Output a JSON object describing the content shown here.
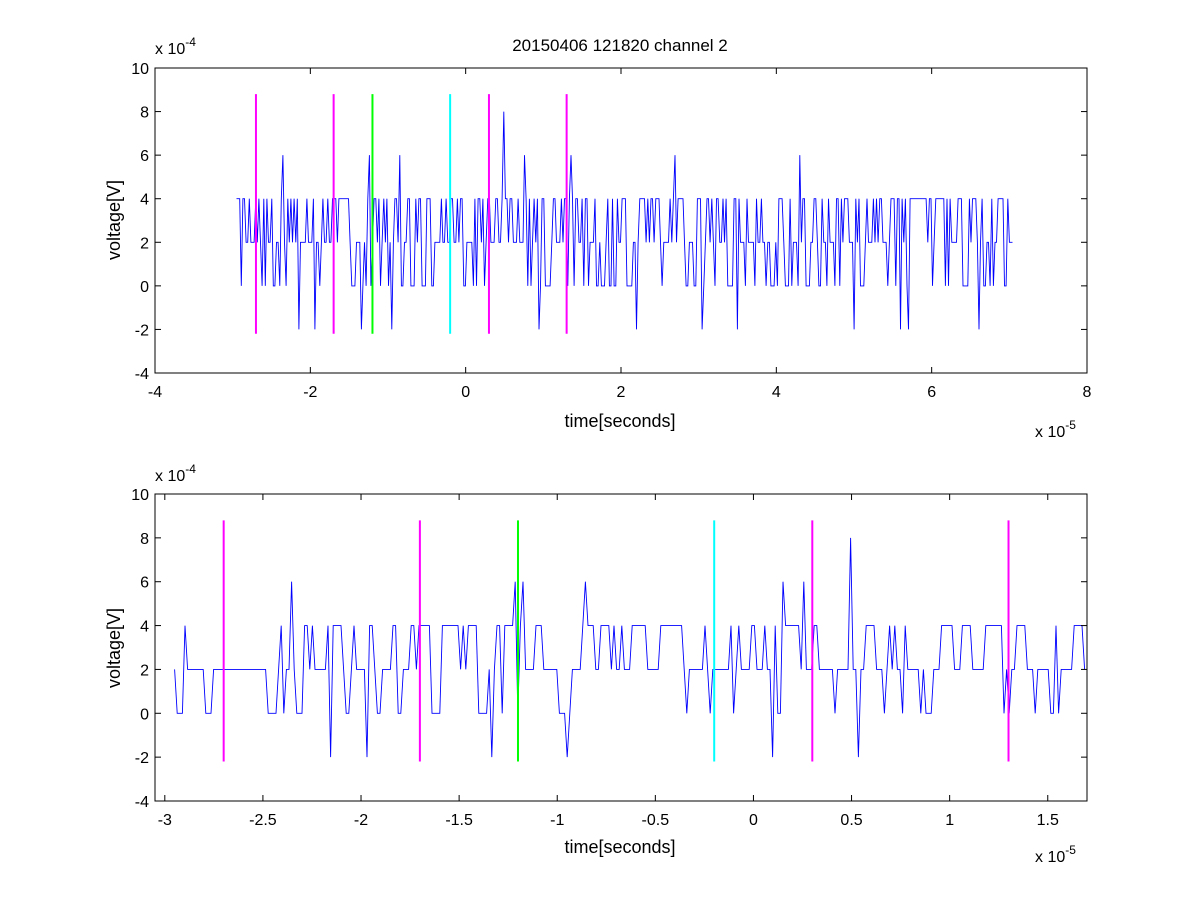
{
  "chart_data": [
    {
      "type": "line",
      "title": "20150406 121820 channel 2",
      "xlabel": "time[seconds]",
      "ylabel": "voltage[V]",
      "x_multiplier": "x 10",
      "x_exponent": "-5",
      "y_multiplier": "x 10",
      "y_exponent": "-4",
      "xlim": [
        -4,
        8
      ],
      "ylim": [
        -4,
        10
      ],
      "xticks": [
        "-4",
        "-2",
        "0",
        "2",
        "4",
        "6",
        "8"
      ],
      "yticks": [
        "-4",
        "-2",
        "0",
        "2",
        "4",
        "6",
        "8",
        "10"
      ],
      "series": [
        {
          "color": "#0000ff",
          "x_range": [
            -2.95,
            7.05
          ],
          "levels": [
            0,
            2,
            4
          ],
          "seed": 7,
          "switch_prob": 0.85,
          "x_units": "data",
          "spikes": [
            {
              "x": -2.35,
              "y": 6
            },
            {
              "x": -1.25,
              "y": 6
            },
            {
              "x": -0.85,
              "y": 6
            },
            {
              "x": 0.5,
              "y": 8
            },
            {
              "x": 1.35,
              "y": 6
            },
            {
              "x": 2.7,
              "y": 6
            },
            {
              "x": 4.3,
              "y": 6
            },
            {
              "x": 0.75,
              "y": 6
            },
            {
              "x": -2.15,
              "y": -2
            },
            {
              "x": -1.95,
              "y": -2
            },
            {
              "x": -1.35,
              "y": -2
            },
            {
              "x": -0.95,
              "y": -2
            },
            {
              "x": 2.2,
              "y": -2
            },
            {
              "x": 3.05,
              "y": -2
            },
            {
              "x": 3.5,
              "y": -2
            },
            {
              "x": 5.0,
              "y": -2
            },
            {
              "x": 5.6,
              "y": -2
            },
            {
              "x": 5.7,
              "y": -2
            },
            {
              "x": 6.6,
              "y": -2
            },
            {
              "x": 0.95,
              "y": -2
            }
          ]
        }
      ],
      "markers": [
        {
          "x": -2.7,
          "color": "#ff00ff"
        },
        {
          "x": -1.7,
          "color": "#ff00ff"
        },
        {
          "x": -1.2,
          "color": "#00ff00"
        },
        {
          "x": -0.2,
          "color": "#00ffff"
        },
        {
          "x": 0.3,
          "color": "#ff00ff"
        },
        {
          "x": 1.3,
          "color": "#ff00ff"
        }
      ],
      "marker_range": [
        -2.2,
        8.8
      ],
      "grid": false
    },
    {
      "type": "line",
      "title": "",
      "xlabel": "time[seconds]",
      "ylabel": "voltage[V]",
      "x_multiplier": "x 10",
      "x_exponent": "-5",
      "y_multiplier": "x 10",
      "y_exponent": "-4",
      "xlim": [
        -3.05,
        1.7
      ],
      "ylim": [
        -4,
        10
      ],
      "xticks": [
        "-3",
        "-2.5",
        "-2",
        "-1.5",
        "-1",
        "-0.5",
        "0",
        "0.5",
        "1",
        "1.5"
      ],
      "xtick_values": [
        -3,
        -2.5,
        -2,
        -1.5,
        -1,
        -0.5,
        0,
        0.5,
        1,
        1.5
      ],
      "yticks": [
        "-4",
        "-2",
        "0",
        "2",
        "4",
        "6",
        "8",
        "10"
      ],
      "series": [
        {
          "color": "#0000ff",
          "x_range": [
            -2.95,
            1.7
          ],
          "levels": [
            0,
            2,
            4
          ],
          "seed": 11,
          "switch_prob": 0.55,
          "spikes": [
            {
              "x": -2.35,
              "y": 6
            },
            {
              "x": -1.22,
              "y": 6
            },
            {
              "x": -1.18,
              "y": 6
            },
            {
              "x": -0.85,
              "y": 6
            },
            {
              "x": 0.5,
              "y": 8
            },
            {
              "x": 0.15,
              "y": 6
            },
            {
              "x": 0.26,
              "y": 6
            },
            {
              "x": -2.15,
              "y": -2
            },
            {
              "x": -1.97,
              "y": -2
            },
            {
              "x": -1.33,
              "y": -2
            },
            {
              "x": -0.95,
              "y": -2
            },
            {
              "x": 0.1,
              "y": -2
            },
            {
              "x": 0.53,
              "y": -2
            }
          ]
        }
      ],
      "markers": [
        {
          "x": -2.7,
          "color": "#ff00ff"
        },
        {
          "x": -1.7,
          "color": "#ff00ff"
        },
        {
          "x": -1.2,
          "color": "#00ff00"
        },
        {
          "x": -0.2,
          "color": "#00ffff"
        },
        {
          "x": 0.3,
          "color": "#ff00ff"
        },
        {
          "x": 1.3,
          "color": "#ff00ff"
        }
      ],
      "marker_range": [
        -2.2,
        8.8
      ],
      "grid": false
    }
  ]
}
